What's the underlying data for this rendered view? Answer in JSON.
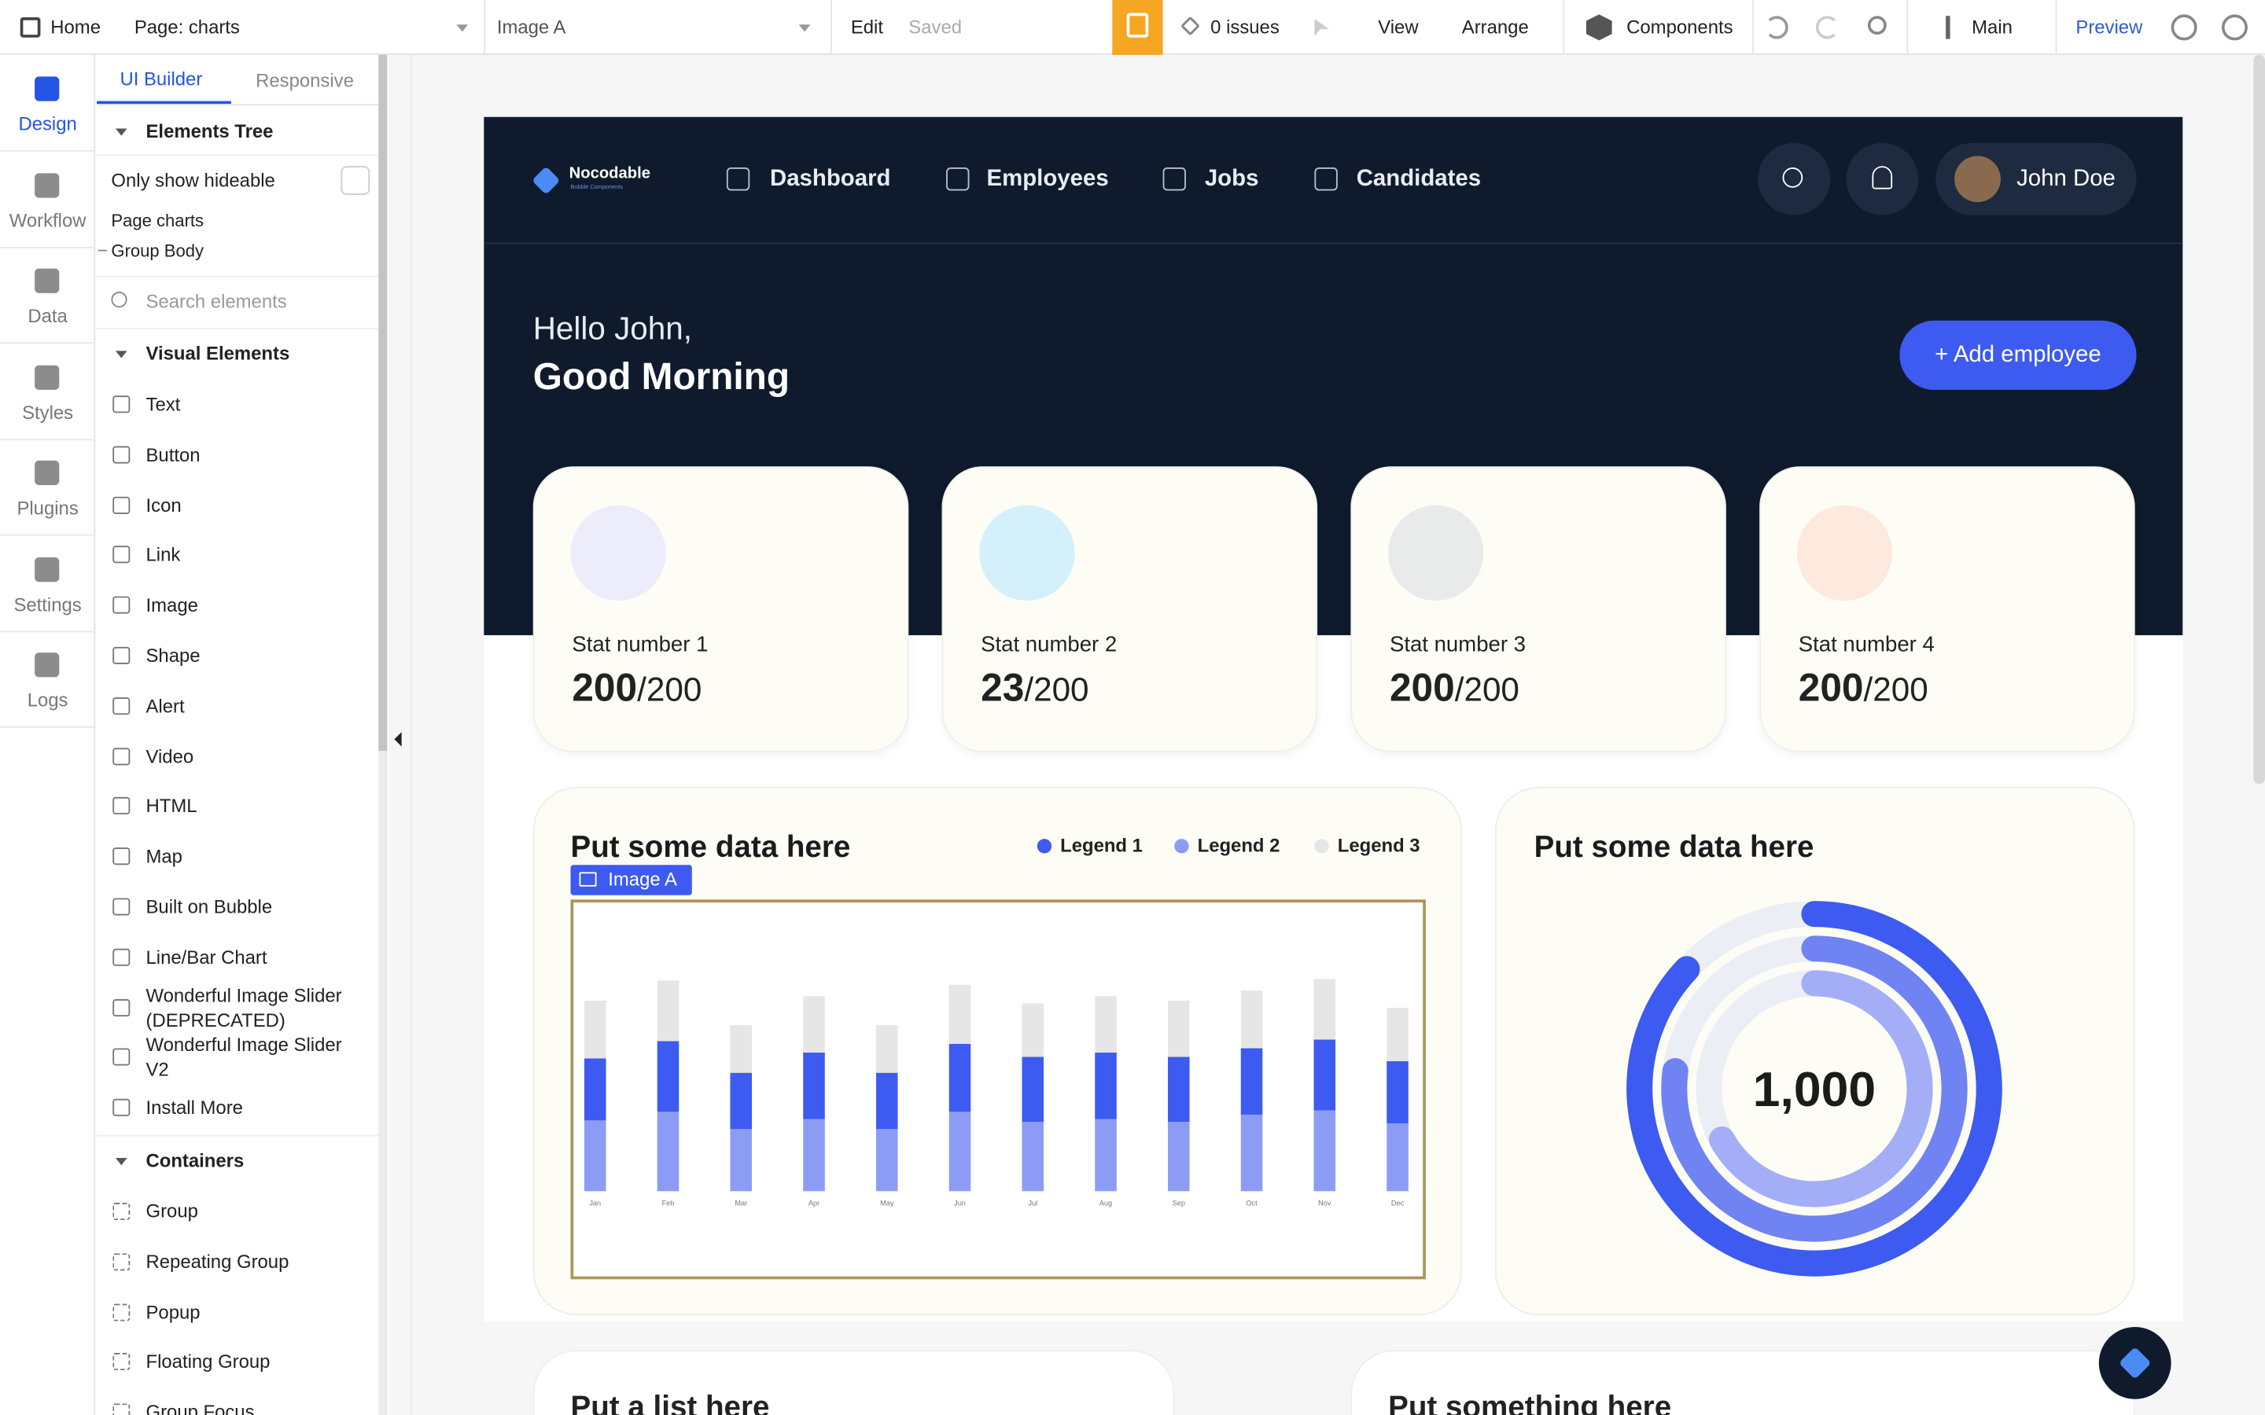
{
  "topbar": {
    "home": "Home",
    "page": "Page: charts",
    "element": "Image A",
    "edit": "Edit",
    "saved": "Saved",
    "issues": "0 issues",
    "view": "View",
    "arrange": "Arrange",
    "components": "Components",
    "branch": "Main",
    "preview": "Preview"
  },
  "sidebar": {
    "tabs": [
      "Design",
      "Workflow",
      "Data",
      "Styles",
      "Plugins",
      "Settings",
      "Logs"
    ]
  },
  "panel": {
    "tabs": [
      "UI Builder",
      "Responsive"
    ],
    "elements_tree": "Elements Tree",
    "only_show": "Only show hideable",
    "tree": [
      "Page charts",
      "Group Body"
    ],
    "search": "Search elements",
    "visual_title": "Visual Elements",
    "visual": [
      "Text",
      "Button",
      "Icon",
      "Link",
      "Image",
      "Shape",
      "Alert",
      "Video",
      "HTML",
      "Map",
      "Built on Bubble",
      "Line/Bar Chart",
      "Wonderful Image Slider (DEPRECATED)",
      "Wonderful Image Slider V2",
      "Install More"
    ],
    "containers_title": "Containers",
    "containers": [
      "Group",
      "Repeating Group",
      "Popup",
      "Floating Group",
      "Group Focus"
    ]
  },
  "app": {
    "brand": "Nocodable",
    "brand_sub": "Bubble Components",
    "nav": [
      "Dashboard",
      "Employees",
      "Jobs",
      "Candidates"
    ],
    "user": "John Doe",
    "greeting": "Hello John,",
    "greeting2": "Good Morning",
    "add_button": "+ Add employee",
    "stats": [
      {
        "label": "Stat number 1",
        "value": 200,
        "total": "/200"
      },
      {
        "label": "Stat number 2",
        "value": 23,
        "total": "/200"
      },
      {
        "label": "Stat number 3",
        "value": 200,
        "total": "/200"
      },
      {
        "label": "Stat number 4",
        "value": 200,
        "total": "/200"
      }
    ],
    "card1_title": "Put some data here",
    "selected_label": "Image A",
    "card2_title": "Put some data here",
    "card3_title": "Put a list here",
    "card4_title": "Put something here"
  },
  "chart_data": [
    {
      "type": "bar",
      "stacked": true,
      "categories": [
        "Jan",
        "Feb",
        "Mar",
        "Apr",
        "May",
        "Jun",
        "Jul",
        "Aug",
        "Sep",
        "Oct",
        "Nov",
        "Dec"
      ],
      "series": [
        {
          "name": "Legend 1",
          "color": "#3d5af1",
          "values": [
            43,
            49,
            39,
            46,
            39,
            47,
            45,
            46,
            45,
            46,
            49,
            43
          ]
        },
        {
          "name": "Legend 2",
          "color": "#8c9cf5",
          "values": [
            49,
            55,
            43,
            50,
            43,
            55,
            48,
            50,
            48,
            53,
            56,
            47
          ]
        },
        {
          "name": "Legend 3",
          "color": "#e6e6e6",
          "values": [
            40,
            42,
            33,
            39,
            33,
            41,
            37,
            39,
            39,
            40,
            42,
            37
          ]
        }
      ],
      "ylim": [
        0,
        175
      ]
    },
    {
      "type": "radial",
      "center_label": "1,000",
      "values": [
        87,
        77,
        67
      ],
      "colors": [
        "#3d5af1",
        "#6f83f3",
        "#a3aef7"
      ],
      "ylim": [
        0,
        100
      ]
    }
  ]
}
